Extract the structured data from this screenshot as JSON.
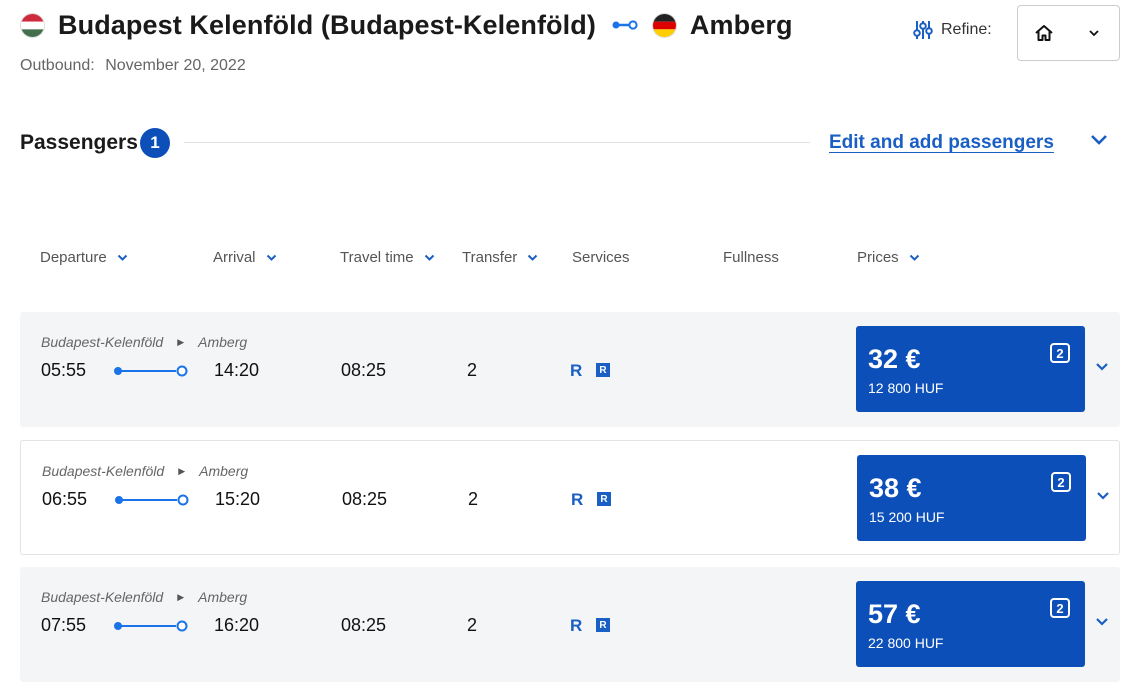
{
  "header": {
    "origin": "Budapest Kelenföld (Budapest-Kelenföld)",
    "origin_flag": "flag-hungary-icon",
    "destination": "Amberg",
    "destination_flag": "flag-germany-icon",
    "outbound_label": "Outbound:",
    "outbound_date": "November 20, 2022",
    "refine_label": "Refine:"
  },
  "passengers": {
    "label": "Passengers",
    "count": "1",
    "edit_link": "Edit and add passengers"
  },
  "columns": {
    "departure": "Departure",
    "arrival": "Arrival",
    "travel_time": "Travel time",
    "transfer": "Transfer",
    "services": "Services",
    "fullness": "Fullness",
    "prices": "Prices"
  },
  "trips": [
    {
      "from": "Budapest-Kelenföld",
      "to": "Amberg",
      "departure": "05:55",
      "arrival": "14:20",
      "duration": "08:25",
      "transfers": "2",
      "service_1": "R",
      "service_2": "R",
      "price": "32 €",
      "price_huf": "12 800  HUF",
      "class": "2"
    },
    {
      "from": "Budapest-Kelenföld",
      "to": "Amberg",
      "departure": "06:55",
      "arrival": "15:20",
      "duration": "08:25",
      "transfers": "2",
      "service_1": "R",
      "service_2": "R",
      "price": "38 €",
      "price_huf": "15 200  HUF",
      "class": "2"
    },
    {
      "from": "Budapest-Kelenföld",
      "to": "Amberg",
      "departure": "07:55",
      "arrival": "16:20",
      "duration": "08:25",
      "transfers": "2",
      "service_1": "R",
      "service_2": "R",
      "price": "57 €",
      "price_huf": "22 800  HUF",
      "class": "2"
    }
  ],
  "colors": {
    "accent": "#0d4fb8",
    "link": "#1a5fc4",
    "row_alt": "#f4f5f7"
  }
}
